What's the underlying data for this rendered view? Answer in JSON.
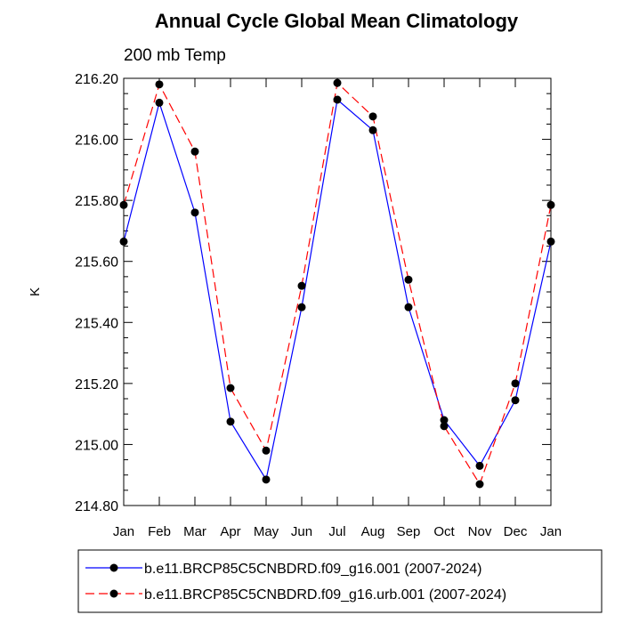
{
  "chart_data": {
    "type": "line",
    "title": "Annual Cycle Global Mean Climatology",
    "subtitle": "200 mb Temp",
    "xlabel": "",
    "ylabel": "K",
    "categories": [
      "Jan",
      "Feb",
      "Mar",
      "Apr",
      "May",
      "Jun",
      "Jul",
      "Aug",
      "Sep",
      "Oct",
      "Nov",
      "Dec",
      "Jan"
    ],
    "ylim": [
      214.8,
      216.2
    ],
    "yticks": [
      214.8,
      215.0,
      215.2,
      215.4,
      215.6,
      215.8,
      216.0,
      216.2
    ],
    "ytick_labels": [
      "214.80",
      "215.00",
      "215.20",
      "215.40",
      "215.60",
      "215.80",
      "216.00",
      "216.20"
    ],
    "legend_position": "bottom",
    "series": [
      {
        "name": "b.e11.BRCP85C5CNBDRD.f09_g16.001 (2007-2024)",
        "color": "#0000ff",
        "dash": "solid",
        "values": [
          215.665,
          216.12,
          215.76,
          215.075,
          214.885,
          215.45,
          216.13,
          216.03,
          215.45,
          215.08,
          214.93,
          215.145,
          215.665
        ]
      },
      {
        "name": "b.e11.BRCP85C5CNBDRD.f09_g16.urb.001 (2007-2024)",
        "color": "#ff0000",
        "dash": "dashed",
        "values": [
          215.785,
          216.18,
          215.96,
          215.185,
          214.98,
          215.52,
          216.185,
          216.075,
          215.54,
          215.06,
          214.87,
          215.2,
          215.785
        ]
      }
    ]
  }
}
